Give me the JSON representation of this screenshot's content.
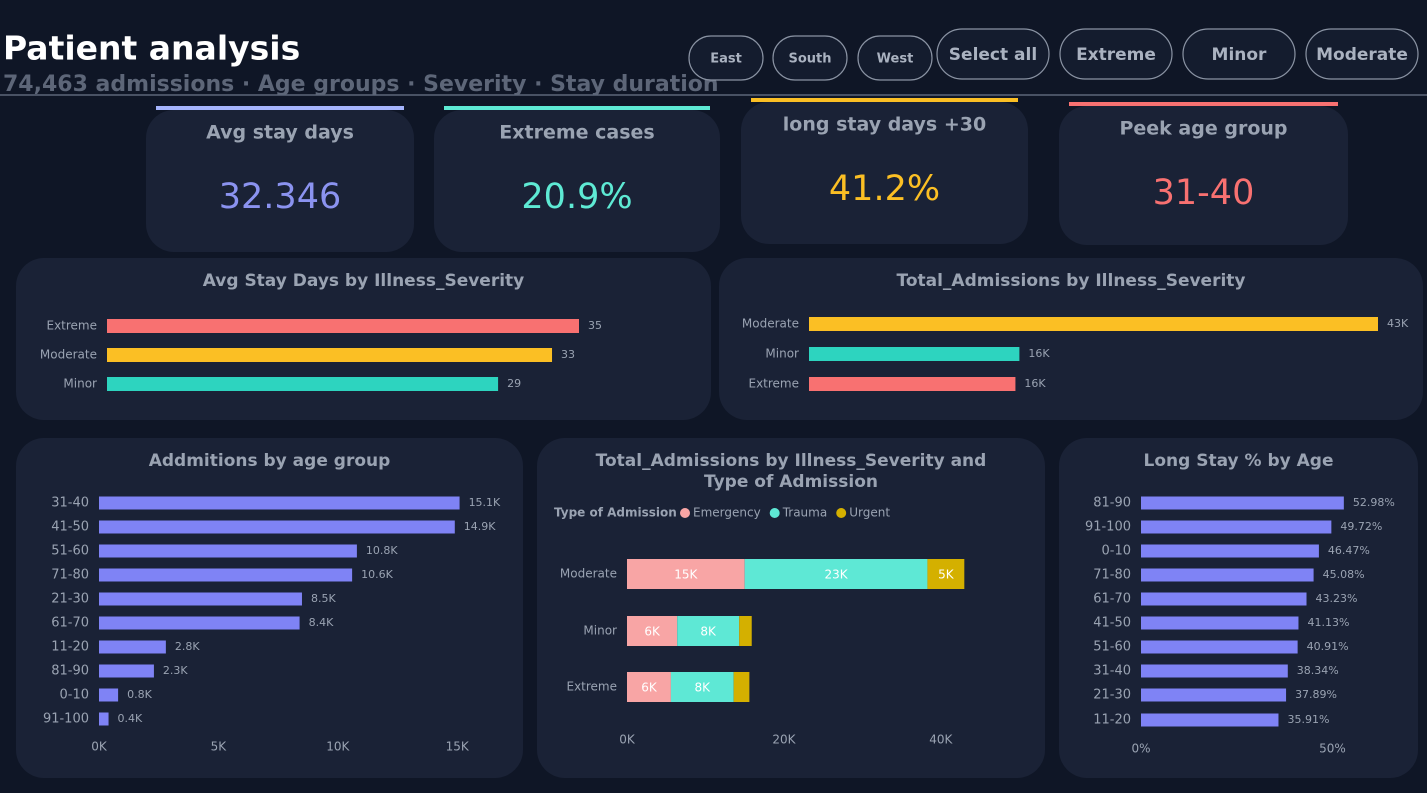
{
  "header": {
    "title": "Patient analysis",
    "subtitle": "74,463 admissions · Age groups · Severity · Stay duration"
  },
  "filters": [
    "East",
    "South",
    "West",
    "Select all",
    "Extreme",
    "Minor",
    "Moderate"
  ],
  "kpis": [
    {
      "label": "Avg stay days",
      "value": "32.346",
      "color": "#8b93f0",
      "accent": "#a5b4fc"
    },
    {
      "label": "Extreme cases",
      "value": "20.9%",
      "color": "#5eead4",
      "accent": "#5eead4"
    },
    {
      "label": "long stay days +30",
      "value": "41.2%",
      "color": "#fbbf24",
      "accent": "#fbbf24"
    },
    {
      "label": "Peek age group",
      "value": "31-40",
      "color": "#f87171",
      "accent": "#f87171"
    }
  ],
  "chart_data": [
    {
      "type": "bar",
      "orientation": "horizontal",
      "title": "Avg Stay Days by Illness_Severity",
      "categories": [
        "Extreme",
        "Moderate",
        "Minor"
      ],
      "values": [
        35,
        33,
        29
      ],
      "colors": [
        "#f87171",
        "#fbbf24",
        "#2dd4bf"
      ]
    },
    {
      "type": "bar",
      "orientation": "horizontal",
      "title": "Total_Admissions by Illness_Severity",
      "categories": [
        "Moderate",
        "Minor",
        "Extreme"
      ],
      "values": [
        43000,
        15900,
        15600
      ],
      "value_labels": [
        "43K",
        "16K",
        "16K"
      ],
      "colors": [
        "#fbbf24",
        "#2dd4bf",
        "#f87171"
      ]
    },
    {
      "type": "bar",
      "orientation": "horizontal",
      "title": "Addmitions by age group",
      "categories": [
        "31-40",
        "41-50",
        "51-60",
        "71-80",
        "21-30",
        "61-70",
        "11-20",
        "81-90",
        "0-10",
        "91-100"
      ],
      "values": [
        15100,
        14900,
        10800,
        10600,
        8500,
        8400,
        2800,
        2300,
        800,
        400
      ],
      "value_labels": [
        "15.1K",
        "14.9K",
        "10.8K",
        "10.6K",
        "8.5K",
        "8.4K",
        "2.8K",
        "2.3K",
        "0.8K",
        "0.4K"
      ],
      "color": "#7f83f5",
      "xlim": [
        0,
        16500
      ],
      "xticks": [
        {
          "value": 0,
          "label": "0K"
        },
        {
          "value": 5000,
          "label": "5K"
        },
        {
          "value": 10000,
          "label": "10K"
        },
        {
          "value": 15000,
          "label": "15K"
        }
      ]
    },
    {
      "type": "stacked_bar",
      "orientation": "horizontal",
      "title": "Total_Admissions by Illness_Severity and Type of Admission",
      "legend_title": "Type of Admission",
      "categories": [
        "Moderate",
        "Minor",
        "Extreme"
      ],
      "series": [
        {
          "name": "Emergency",
          "color": "#f8a5a5",
          "values": [
            15000,
            6400,
            5600
          ],
          "value_labels": [
            "15K",
            "6K",
            "6K"
          ]
        },
        {
          "name": "Trauma",
          "color": "#5ee8d5",
          "values": [
            23300,
            7900,
            8000
          ],
          "value_labels": [
            "23K",
            "8K",
            "8K"
          ]
        },
        {
          "name": "Urgent",
          "color": "#d4b000",
          "values": [
            4700,
            1600,
            2000
          ],
          "value_labels": [
            "5K",
            null,
            null
          ]
        }
      ],
      "xlim": [
        0,
        45000
      ],
      "xticks": [
        {
          "value": 0,
          "label": "0K"
        },
        {
          "value": 20000,
          "label": "20K"
        },
        {
          "value": 40000,
          "label": "40K"
        }
      ]
    },
    {
      "type": "bar",
      "orientation": "horizontal",
      "title": "Long Stay % by Age",
      "categories": [
        "81-90",
        "91-100",
        "0-10",
        "71-80",
        "61-70",
        "41-50",
        "51-60",
        "31-40",
        "21-30",
        "11-20"
      ],
      "values": [
        52.98,
        49.72,
        46.47,
        45.08,
        43.23,
        41.13,
        40.91,
        38.34,
        37.89,
        35.91
      ],
      "value_labels": [
        "52.98%",
        "49.72%",
        "46.47%",
        "45.08%",
        "43.23%",
        "41.13%",
        "40.91%",
        "38.34%",
        "37.89%",
        "35.91%"
      ],
      "color": "#7f83f5",
      "xlim": [
        0,
        70
      ],
      "xticks": [
        {
          "value": 0,
          "label": "0%"
        },
        {
          "value": 50,
          "label": "50%"
        }
      ]
    }
  ]
}
